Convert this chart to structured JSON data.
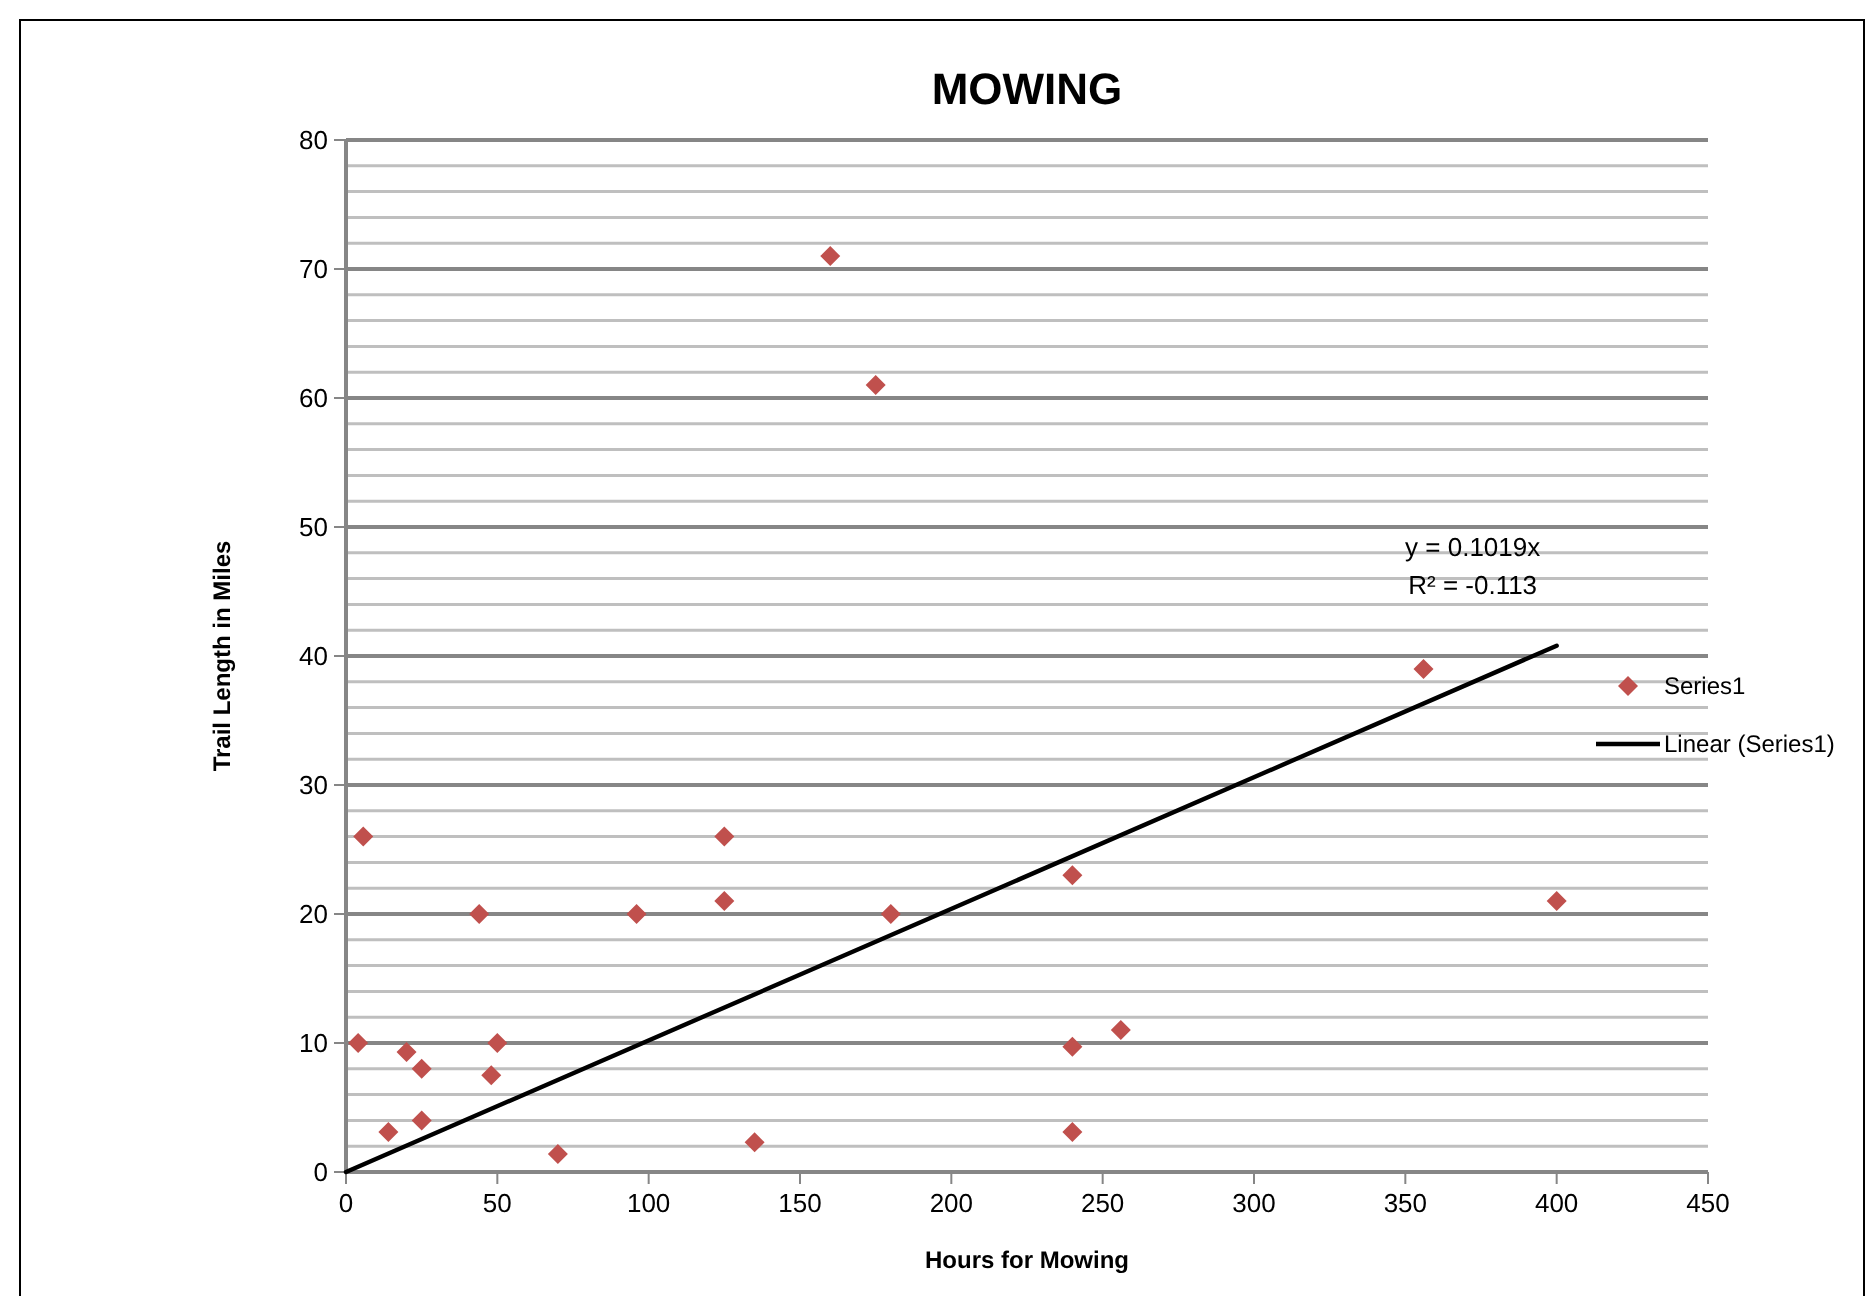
{
  "chart_data": {
    "type": "scatter",
    "title": "MOWING",
    "xlabel": "Hours for Mowing",
    "ylabel": "Trail Length in Miles",
    "xlim": [
      0,
      450
    ],
    "xticks": [
      0,
      50,
      100,
      150,
      200,
      250,
      300,
      350,
      400,
      450
    ],
    "ylim": [
      0,
      80
    ],
    "yticks": [
      0,
      {
        "value": 2,
        "label": null
      },
      {
        "value": 4,
        "label": null
      },
      {
        "value": 6,
        "label": null
      },
      {
        "value": 8,
        "label": null
      },
      10,
      {
        "value": 12,
        "label": null
      },
      {
        "value": 14,
        "label": null
      },
      {
        "value": 16,
        "label": null
      },
      {
        "value": 18,
        "label": null
      },
      20,
      {
        "value": 22,
        "label": null
      },
      {
        "value": 24,
        "label": null
      },
      {
        "value": 26,
        "label": null
      },
      {
        "value": 28,
        "label": null
      },
      30,
      {
        "value": 32,
        "label": null
      },
      {
        "value": 34,
        "label": null
      },
      {
        "value": 36,
        "label": null
      },
      {
        "value": 38,
        "label": null
      },
      40,
      {
        "value": 42,
        "label": null
      },
      {
        "value": 44,
        "label": null
      },
      {
        "value": 46,
        "label": null
      },
      {
        "value": 48,
        "label": null
      },
      50,
      {
        "value": 52,
        "label": null
      },
      {
        "value": 54,
        "label": null
      },
      {
        "value": 56,
        "label": null
      },
      {
        "value": 58,
        "label": null
      },
      60,
      {
        "value": 62,
        "label": null
      },
      {
        "value": 64,
        "label": null
      },
      {
        "value": 66,
        "label": null
      },
      {
        "value": 68,
        "label": null
      },
      70,
      {
        "value": 72,
        "label": null
      },
      {
        "value": 74,
        "label": null
      },
      {
        "value": 76,
        "label": null
      },
      {
        "value": 78,
        "label": null
      },
      80
    ],
    "grid": "y",
    "legend": "right",
    "series": [
      {
        "name": "Series1",
        "marker": "diamond",
        "color": "#c0504d",
        "x": [
          5.7,
          125,
          125,
          44,
          96,
          180,
          4,
          20,
          25,
          50,
          48,
          14,
          25,
          70,
          135,
          160,
          175,
          240,
          240,
          240,
          256,
          356,
          400
        ],
        "values": [
          26,
          26,
          21,
          20,
          20,
          20,
          10,
          9.3,
          8,
          10,
          7.5,
          3.1,
          4,
          1.4,
          2.3,
          71,
          61,
          23,
          9.7,
          3.1,
          11,
          39,
          21
        ]
      },
      {
        "name": "Linear (Series1)",
        "type": "line",
        "color": "#000000",
        "marker": "none",
        "line_style": "solid",
        "x": [
          0,
          400
        ],
        "values": [
          0,
          40.8
        ]
      }
    ],
    "annotations": [
      "y = 0.1019x",
      "R² = -0.113"
    ]
  }
}
